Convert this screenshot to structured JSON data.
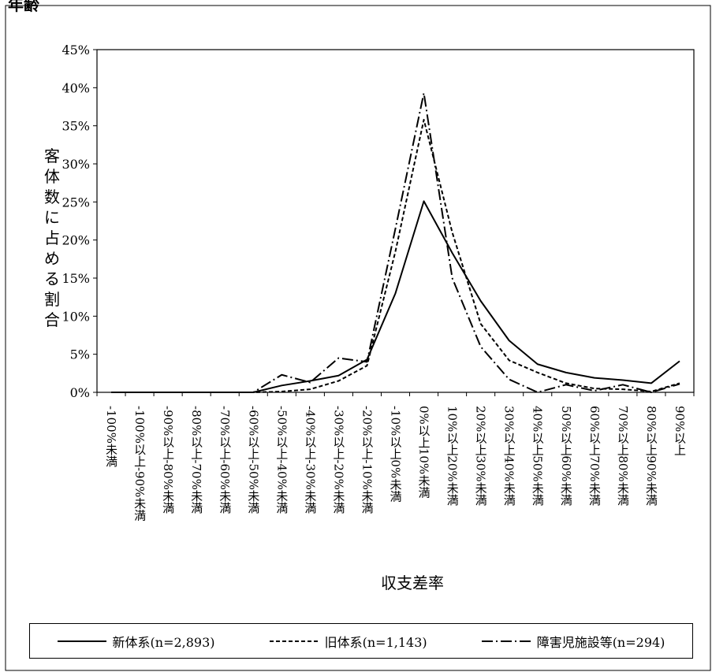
{
  "page": {
    "title_fragment": "年齢"
  },
  "chart_data": {
    "type": "line",
    "title": "",
    "xlabel": "収支差率",
    "ylabel": "客体数に占める割合",
    "ylim": [
      0,
      45
    ],
    "yticks": [
      "0%",
      "5%",
      "10%",
      "15%",
      "20%",
      "25%",
      "30%",
      "35%",
      "40%",
      "45%"
    ],
    "grid": false,
    "legend_position": "bottom",
    "categories": [
      "-100%未満",
      "-100%以上-90%未満",
      "-90%以上-80%未満",
      "-80%以上-70%未満",
      "-70%以上-60%未満",
      "-60%以上-50%未満",
      "-50%以上-40%未満",
      "-40%以上-30%未満",
      "-30%以上-20%未満",
      "-20%以上-10%未満",
      "-10%以上0%未満",
      "0%以上10%未満",
      "10%以上20%未満",
      "20%以上30%未満",
      "30%以上40%未満",
      "40%以上50%未満",
      "50%以上60%未満",
      "60%以上70%未満",
      "70%以上80%未満",
      "80%以上90%未満",
      "90%以上"
    ],
    "series": [
      {
        "name": "新体系(n=2,893)",
        "style": "solid",
        "values": [
          0.0,
          0.0,
          0.0,
          0.0,
          0.0,
          0.0,
          0.9,
          1.5,
          2.2,
          4.3,
          13.0,
          25.1,
          18.3,
          12.0,
          6.8,
          3.7,
          2.6,
          1.9,
          1.6,
          1.2,
          4.1
        ]
      },
      {
        "name": "旧体系(n=1,143)",
        "style": "dashed",
        "values": [
          0.0,
          0.0,
          0.0,
          0.0,
          0.0,
          0.0,
          0.1,
          0.4,
          1.5,
          3.5,
          18.5,
          35.8,
          21.0,
          9.0,
          4.2,
          2.6,
          1.2,
          0.5,
          0.4,
          0.1,
          1.2
        ]
      },
      {
        "name": "障害児施設等(n=294)",
        "style": "dash-dot",
        "values": [
          0.0,
          0.0,
          0.0,
          0.0,
          0.0,
          0.0,
          2.3,
          1.3,
          4.5,
          4.0,
          21.5,
          39.3,
          15.0,
          6.0,
          1.7,
          0.0,
          1.0,
          0.2,
          1.0,
          0.0,
          1.1
        ]
      }
    ]
  }
}
